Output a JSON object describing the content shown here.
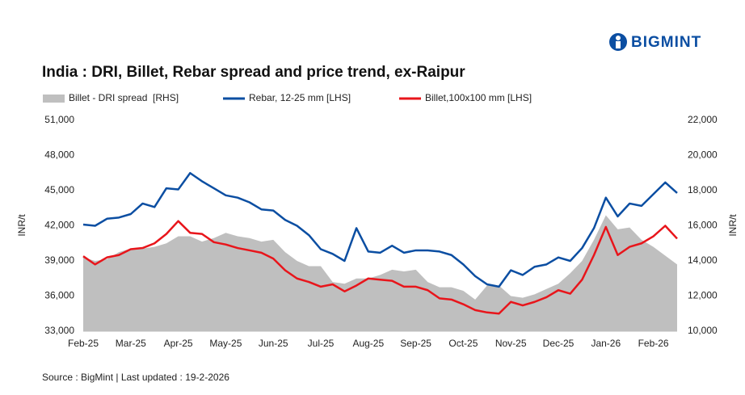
{
  "brand": "BIGMINT",
  "source": "Source : BigMint | Last updated : 19-2-2026",
  "chart_data": {
    "type": "line",
    "title": "India : DRI, Billet, Rebar spread and price trend, ex-Raipur",
    "y_label": "INR/t",
    "y2_label": "INR/t",
    "categories": [
      "Feb-25",
      null,
      null,
      null,
      "Mar-25",
      null,
      null,
      null,
      "Apr-25",
      null,
      null,
      null,
      "May-25",
      null,
      null,
      null,
      "Jun-25",
      null,
      null,
      null,
      "Jul-25",
      null,
      null,
      null,
      "Aug-25",
      null,
      null,
      null,
      "Sep-25",
      null,
      null,
      null,
      "Oct-25",
      null,
      null,
      null,
      "Nov-25",
      null,
      null,
      null,
      "Dec-25",
      null,
      null,
      null,
      "Jan-26",
      null,
      null,
      null,
      "Feb-26",
      null,
      null
    ],
    "series": [
      {
        "name": "Billet - DRI spread  [RHS]",
        "type": "area",
        "axis": "y2",
        "color": "#bfbfbf",
        "values": [
          14200,
          14000,
          14100,
          14500,
          14700,
          14700,
          14800,
          15000,
          15400,
          15400,
          15100,
          15300,
          15600,
          15400,
          15300,
          15100,
          15200,
          14500,
          14000,
          13700,
          13700,
          12800,
          12700,
          13000,
          13000,
          13200,
          13500,
          13400,
          13500,
          12800,
          12500,
          12500,
          12300,
          11800,
          12600,
          12600,
          12000,
          11900,
          12100,
          12400,
          12700,
          13300,
          14000,
          15200,
          16600,
          15800,
          15900,
          15200,
          14800,
          14300,
          13800
        ]
      },
      {
        "name": "Rebar, 12-25 mm [LHS]",
        "type": "line",
        "color": "#0b4ea2",
        "values": [
          42100,
          42000,
          42600,
          42700,
          43000,
          43900,
          43600,
          45200,
          45100,
          46500,
          45800,
          45200,
          44600,
          44400,
          44000,
          43400,
          43300,
          42500,
          42000,
          41200,
          40000,
          39600,
          39000,
          41800,
          39800,
          39700,
          40300,
          39700,
          39900,
          39900,
          39800,
          39500,
          38700,
          37700,
          37000,
          36800,
          38200,
          37800,
          38500,
          38700,
          39300,
          39000,
          40100,
          41800,
          44400,
          42800,
          43900,
          43700,
          44700,
          45700,
          44800
        ]
      },
      {
        "name": "Billet,100x100 mm [LHS]",
        "type": "line",
        "color": "#e8151b",
        "values": [
          39400,
          38700,
          39300,
          39500,
          40000,
          40100,
          40500,
          41300,
          42400,
          41400,
          41300,
          40600,
          40400,
          40100,
          39900,
          39700,
          39200,
          38200,
          37500,
          37200,
          36800,
          37000,
          36400,
          36900,
          37500,
          37400,
          37300,
          36800,
          36800,
          36500,
          35800,
          35700,
          35300,
          34800,
          34600,
          34500,
          35500,
          35200,
          35500,
          35900,
          36500,
          36200,
          37400,
          39500,
          41900,
          39500,
          40200,
          40500,
          41100,
          42000,
          40900
        ]
      }
    ],
    "ylim": [
      33000,
      51000
    ],
    "yticks": [
      {
        "value": 33000,
        "label": "33,000"
      },
      {
        "value": 36000,
        "label": "36,000"
      },
      {
        "value": 39000,
        "label": "39,000"
      },
      {
        "value": 42000,
        "label": "42,000"
      },
      {
        "value": 45000,
        "label": "45,000"
      },
      {
        "value": 48000,
        "label": "48,000"
      },
      {
        "value": 51000,
        "label": "51,000"
      }
    ],
    "y2lim": [
      10000,
      22000
    ],
    "y2ticks": [
      {
        "value": 10000,
        "label": "10,000"
      },
      {
        "value": 12000,
        "label": "12,000"
      },
      {
        "value": 14000,
        "label": "14,000"
      },
      {
        "value": 16000,
        "label": "16,000"
      },
      {
        "value": 18000,
        "label": "18,000"
      },
      {
        "value": 20000,
        "label": "20,000"
      },
      {
        "value": 22000,
        "label": "22,000"
      }
    ],
    "grid": false
  }
}
